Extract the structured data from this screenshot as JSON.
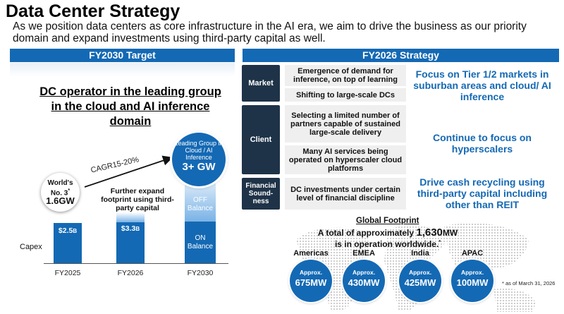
{
  "title": "Data Center Strategy",
  "subtitle": "As we position data centers as core infrastructure in the AI era, we aim to drive the business as our priority domain and expand investments using third-party capital as well.",
  "left_panel": {
    "header": "FY2030 Target",
    "headline": "DC operator in the leading group in the cloud and AI inference domain",
    "world_circle": {
      "line1": "World's",
      "line2": "No. 3",
      "star": "*",
      "value": "1.6GW"
    },
    "lead_circle": {
      "text": "Leading Group in Cloud / AI Inference",
      "value": "3+ GW"
    },
    "cagr_label": "CAGR15-20%",
    "expand_text": "Further expand footprint using third-party capital",
    "capex_label": "Capex",
    "bars": [
      {
        "year": "FY2025",
        "value_main": "$2.5",
        "value_unit": "B"
      },
      {
        "year": "FY2026",
        "value_main": "$3.3",
        "value_unit": "B"
      },
      {
        "year": "FY2030",
        "off_label": "OFF Balance",
        "on_label": "ON Balance"
      }
    ],
    "colors": {
      "primary": "#1469b4",
      "light": "#79b3e6"
    }
  },
  "right_panel": {
    "header": "FY2026 Strategy",
    "rows": [
      {
        "category": "Market",
        "items": [
          "Emergence of demand for inference, on top of learning",
          "Shifting to large-scale DCs"
        ],
        "focus": "Focus on Tier 1/2 markets in suburban areas and cloud/ AI inference"
      },
      {
        "category": "Client",
        "items": [
          "Selecting a limited number of partners capable of sustained large-scale delivery",
          "Many AI services being operated on hyperscaler cloud platforms"
        ],
        "focus": "Continue to focus on hyperscalers"
      },
      {
        "category": "Financial Sound-ness",
        "items": [
          "DC investments under certain level of financial discipline"
        ],
        "focus": "Drive cash recycling using third-party capital including other than REIT"
      }
    ],
    "category_color": "#1f3348"
  },
  "global_footprint": {
    "title": "Global Footprint",
    "total_prefix": "A total of approximately",
    "total_value": "1,630",
    "total_unit": "MW",
    "total_suffix": "is in operation worldwide.",
    "star": "*",
    "regions": [
      {
        "name": "Americas",
        "label": "Approx.",
        "value": "675MW"
      },
      {
        "name": "EMEA",
        "label": "Approx.",
        "value": "430MW"
      },
      {
        "name": "India",
        "label": "Approx.",
        "value": "425MW"
      },
      {
        "name": "APAC",
        "label": "Approx.",
        "value": "100MW"
      }
    ],
    "as_of": "* as of March 31, 2026"
  }
}
